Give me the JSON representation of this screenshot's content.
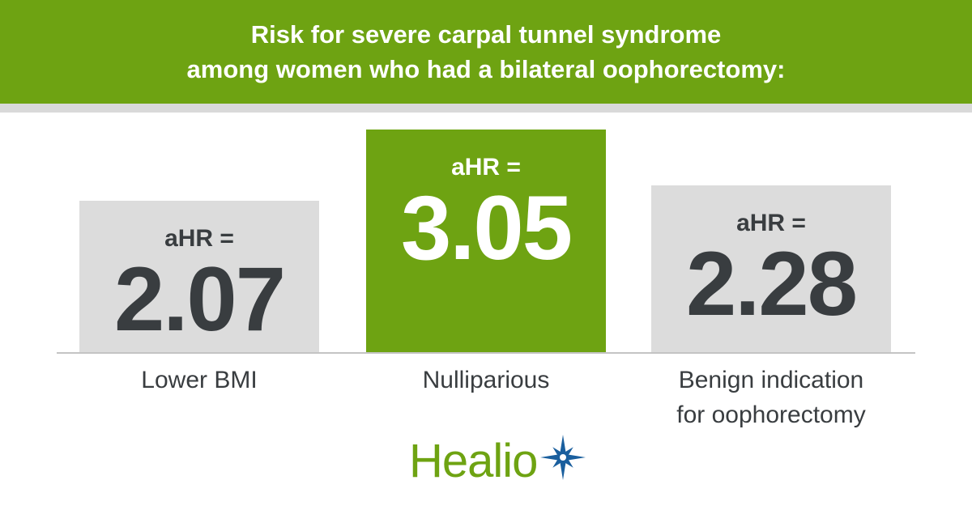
{
  "header": {
    "title_line1": "Risk for severe carpal tunnel syndrome",
    "title_line2": "among women who had a bilateral oophorectomy:"
  },
  "chart_data": {
    "type": "bar",
    "title": "Risk for severe carpal tunnel syndrome among women who had a bilateral oophorectomy:",
    "categories": [
      "Lower BMI",
      "Nulliparious",
      "Benign indication for oophorectomy"
    ],
    "values": [
      2.07,
      3.05,
      2.28
    ],
    "value_prefix": "aHR =",
    "value_labels": [
      "2.07",
      "3.05",
      "2.28"
    ],
    "category_lines": [
      [
        "Lower BMI"
      ],
      [
        "Nulliparious"
      ],
      [
        "Benign indication",
        "for oophorectomy"
      ]
    ],
    "highlight_index": 1,
    "colors": {
      "highlight": "#6ea312",
      "default": "#dcdcdc",
      "text_dark": "#393d40",
      "text_light": "#ffffff"
    },
    "ylim": [
      0,
      3.5
    ],
    "grid": false,
    "legend": "none"
  },
  "logo": {
    "text": "Healio",
    "icon": "star-burst-icon",
    "color": "#6ea312",
    "icon_color": "#1a5f9e"
  }
}
